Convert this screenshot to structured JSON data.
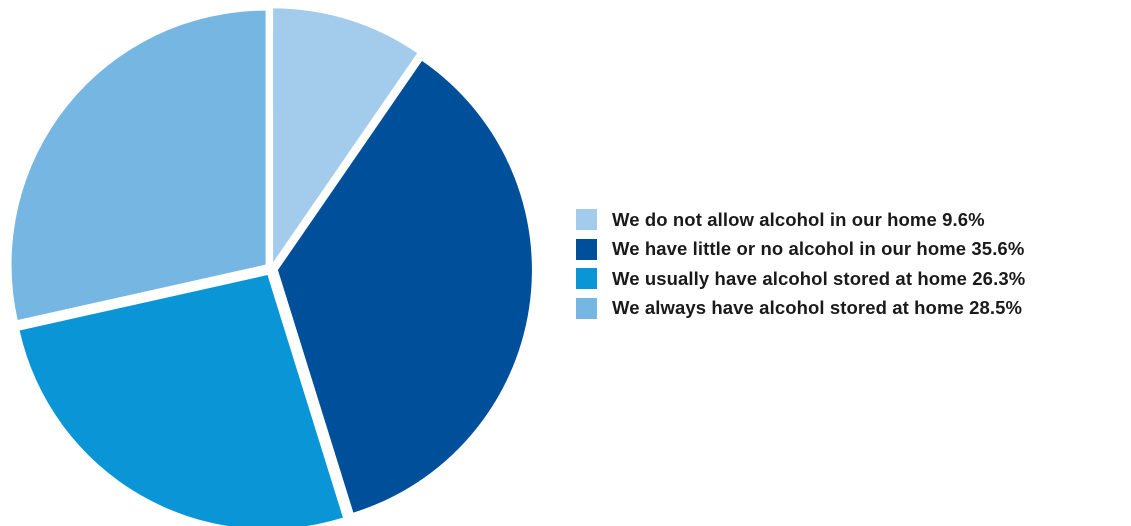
{
  "chart_data": {
    "type": "pie",
    "title": "",
    "unit": "%",
    "legend_position": "right",
    "slices": [
      {
        "label": "We do not allow alcohol in our home",
        "value": 9.6,
        "color": "#a3cbec",
        "legend_text": "We do not allow alcohol in our home 9.6%"
      },
      {
        "label": "We have little or no alcohol in our home",
        "value": 35.6,
        "color": "#004f9a",
        "legend_text": "We have little or no alcohol in our home 35.6%"
      },
      {
        "label": "We usually have alcohol stored at home",
        "value": 26.3,
        "color": "#0a96d6",
        "legend_text": "We usually have alcohol stored at home 26.3%"
      },
      {
        "label": "We always have alcohol stored at home",
        "value": 28.5,
        "color": "#76b6e3",
        "legend_text": "We always have alcohol stored at home 28.5%"
      }
    ]
  }
}
